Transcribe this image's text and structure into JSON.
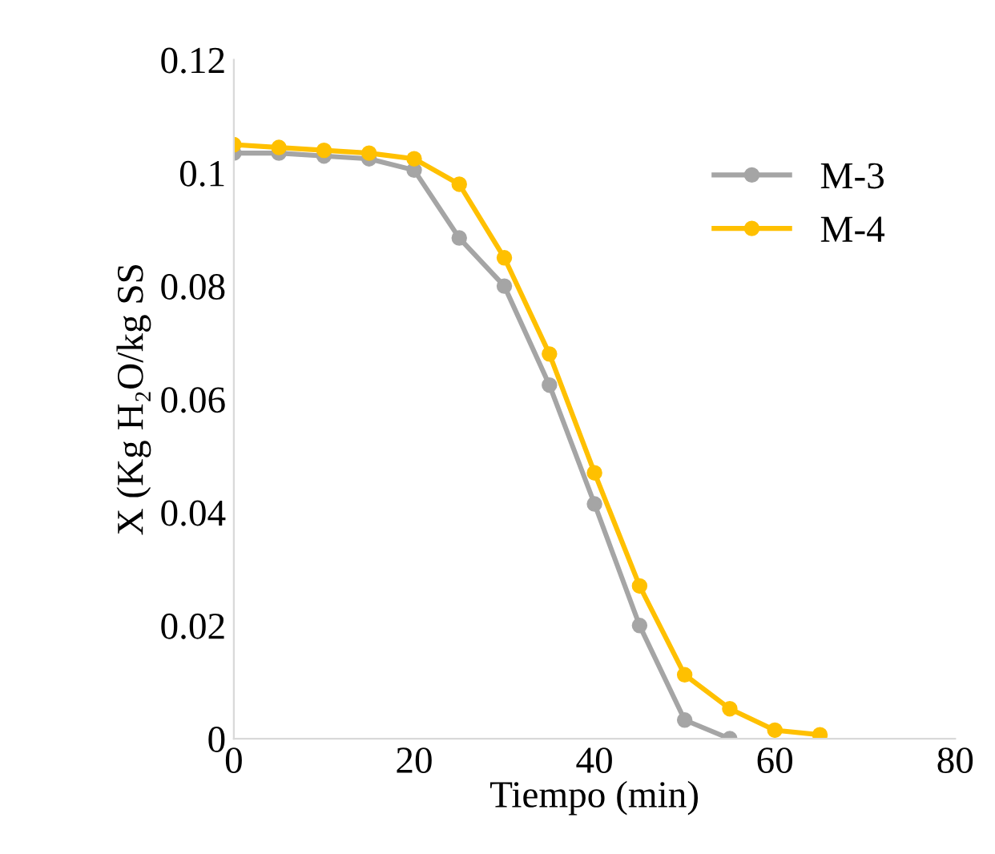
{
  "chart_data": {
    "type": "line",
    "xlabel": "Tiempo (min)",
    "ylabel": "X (Kg H₂O/kg SS",
    "xlim": [
      0,
      80
    ],
    "xticks": [
      0,
      20,
      40,
      60,
      80
    ],
    "ylim": [
      0,
      0.12
    ],
    "yticks": [
      0,
      0.02,
      0.04,
      0.06,
      0.08,
      0.1,
      0.12
    ],
    "marker": "circle",
    "line_style": "solid",
    "grid": false,
    "legend": "top right",
    "series": [
      {
        "name": "M-3",
        "color": "#a5a5a5",
        "x": [
          0,
          5,
          10,
          15,
          20,
          25,
          30,
          35,
          40,
          45,
          50,
          55
        ],
        "values": [
          0.1035,
          0.1035,
          0.103,
          0.1025,
          0.1005,
          0.0885,
          0.08,
          0.0625,
          0.0415,
          0.02,
          0.0033,
          0.0
        ]
      },
      {
        "name": "M-4",
        "color": "#ffc000",
        "x": [
          0,
          5,
          10,
          15,
          20,
          25,
          30,
          35,
          40,
          45,
          50,
          55,
          60,
          65
        ],
        "values": [
          0.105,
          0.1045,
          0.104,
          0.1035,
          0.1025,
          0.098,
          0.085,
          0.068,
          0.047,
          0.027,
          0.0113,
          0.0053,
          0.0015,
          0.0007
        ]
      }
    ]
  }
}
